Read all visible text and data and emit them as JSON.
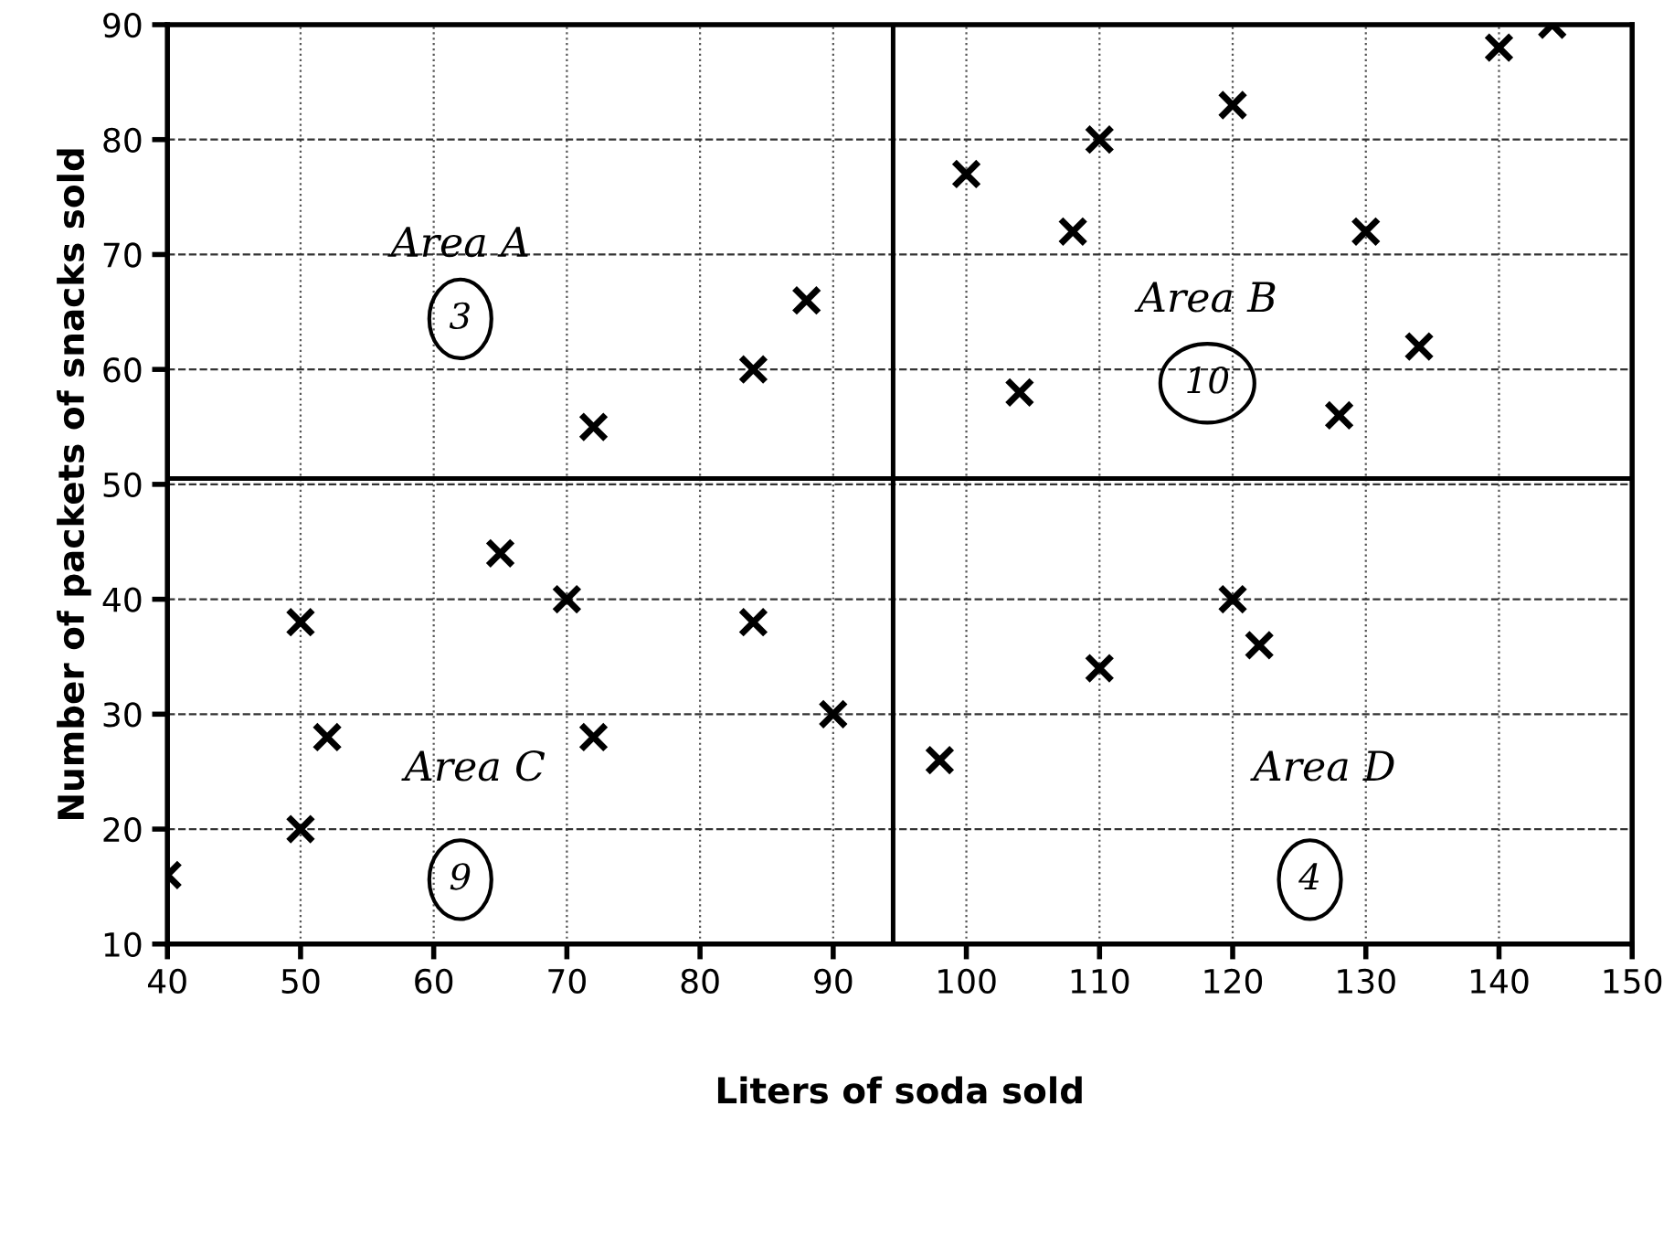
{
  "chart_data": {
    "type": "scatter",
    "xlabel": "Liters of soda sold",
    "ylabel": "Number of packets of snacks sold",
    "series": [
      {
        "color": "#000000",
        "x": [
          72,
          84,
          88,
          100,
          104,
          108,
          110,
          120,
          128,
          130,
          134,
          140,
          144,
          40,
          50,
          50,
          52,
          65,
          70,
          72,
          84,
          90,
          98,
          110,
          120,
          122
        ],
        "values": [
          55,
          60,
          66,
          77,
          58,
          72,
          80,
          83,
          56,
          72,
          62,
          88,
          90,
          16,
          38,
          20,
          28,
          44,
          40,
          28,
          38,
          30,
          26,
          34,
          40,
          36
        ]
      }
    ],
    "marker": "cross",
    "xlim": [
      40,
      150
    ],
    "xticks": [
      40,
      50,
      60,
      70,
      80,
      90,
      100,
      110,
      120,
      130,
      140,
      150
    ],
    "ylim": [
      10,
      90
    ],
    "yticks": [
      10,
      20,
      30,
      40,
      50,
      60,
      70,
      80,
      90
    ],
    "grid": true,
    "ref_lines": [
      {
        "axis": "x",
        "value": 94.5,
        "color": "#000000",
        "line_style": "solid"
      },
      {
        "axis": "y",
        "value": 50.5,
        "color": "#000000",
        "line_style": "solid"
      }
    ],
    "annotations": [
      "Area A",
      "3",
      "Area B",
      "10",
      "Area C",
      "9",
      "Area D",
      "4"
    ]
  }
}
